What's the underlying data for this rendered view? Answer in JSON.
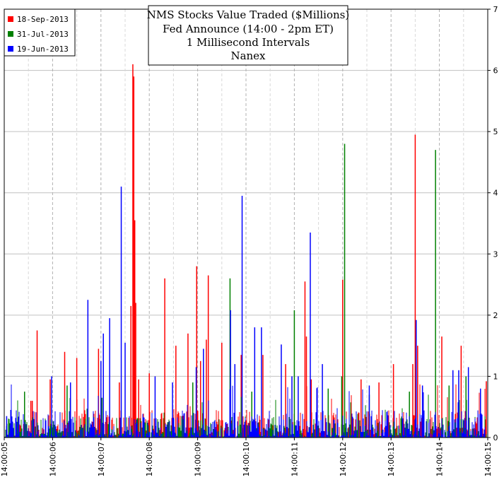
{
  "chart_data": {
    "type": "bar",
    "title_lines": [
      "NMS Stocks Value Traded ($Millions)",
      "Fed Announce (14:00 - 2pm ET)",
      "1 Millisecond Intervals",
      "Nanex"
    ],
    "xlabel": "",
    "ylabel": "",
    "ylim": [
      0,
      7
    ],
    "y_ticks": [
      "0",
      "1",
      "2",
      "3",
      "4",
      "5",
      "6",
      "7"
    ],
    "x_ticks": [
      "14:00:05",
      "14:00:06",
      "14:00:07",
      "14:00:08",
      "14:00:09",
      "14:00:10",
      "14:00:11",
      "14:00:12",
      "14:00:13",
      "14:00:14",
      "14:00:15"
    ],
    "x_range_seconds": [
      5,
      15
    ],
    "grid": true,
    "legend_position": "top-left",
    "series": [
      {
        "name": "18-Sep-2013",
        "color": "#ff0000",
        "baseline_max": 0.45,
        "spikes": [
          {
            "t": 5.55,
            "v": 0.6
          },
          {
            "t": 5.58,
            "v": 0.6
          },
          {
            "t": 5.68,
            "v": 1.75
          },
          {
            "t": 5.95,
            "v": 0.95
          },
          {
            "t": 6.25,
            "v": 1.4
          },
          {
            "t": 6.5,
            "v": 1.3
          },
          {
            "t": 6.95,
            "v": 1.45
          },
          {
            "t": 7.38,
            "v": 0.9
          },
          {
            "t": 7.62,
            "v": 2.15
          },
          {
            "t": 7.66,
            "v": 6.1
          },
          {
            "t": 7.68,
            "v": 5.9
          },
          {
            "t": 7.7,
            "v": 3.55
          },
          {
            "t": 7.72,
            "v": 2.2
          },
          {
            "t": 7.78,
            "v": 0.95
          },
          {
            "t": 8.0,
            "v": 1.05
          },
          {
            "t": 8.32,
            "v": 2.6
          },
          {
            "t": 8.55,
            "v": 1.5
          },
          {
            "t": 8.8,
            "v": 1.7
          },
          {
            "t": 8.98,
            "v": 2.8
          },
          {
            "t": 9.06,
            "v": 1.25
          },
          {
            "t": 9.18,
            "v": 1.6
          },
          {
            "t": 9.22,
            "v": 2.65
          },
          {
            "t": 9.5,
            "v": 1.55
          },
          {
            "t": 9.9,
            "v": 1.35
          },
          {
            "t": 10.35,
            "v": 1.35
          },
          {
            "t": 10.82,
            "v": 1.2
          },
          {
            "t": 11.22,
            "v": 2.55
          },
          {
            "t": 11.25,
            "v": 1.65
          },
          {
            "t": 11.35,
            "v": 0.95
          },
          {
            "t": 12.0,
            "v": 2.58
          },
          {
            "t": 12.38,
            "v": 0.95
          },
          {
            "t": 12.75,
            "v": 0.9
          },
          {
            "t": 13.05,
            "v": 1.2
          },
          {
            "t": 13.45,
            "v": 1.2
          },
          {
            "t": 13.5,
            "v": 4.95
          },
          {
            "t": 13.55,
            "v": 1.5
          },
          {
            "t": 14.05,
            "v": 1.65
          },
          {
            "t": 14.45,
            "v": 1.5
          },
          {
            "t": 14.97,
            "v": 0.92
          }
        ]
      },
      {
        "name": "31-Jul-2013",
        "color": "#008000",
        "baseline_max": 0.35,
        "spikes": [
          {
            "t": 5.42,
            "v": 0.75
          },
          {
            "t": 6.3,
            "v": 0.85
          },
          {
            "t": 7.02,
            "v": 0.65
          },
          {
            "t": 8.9,
            "v": 0.9
          },
          {
            "t": 9.67,
            "v": 2.6
          },
          {
            "t": 10.12,
            "v": 0.75
          },
          {
            "t": 11.0,
            "v": 2.08
          },
          {
            "t": 11.7,
            "v": 0.8
          },
          {
            "t": 11.98,
            "v": 1.0
          },
          {
            "t": 12.04,
            "v": 4.8
          },
          {
            "t": 12.55,
            "v": 0.7
          },
          {
            "t": 13.38,
            "v": 0.75
          },
          {
            "t": 13.92,
            "v": 4.7
          },
          {
            "t": 14.2,
            "v": 0.85
          },
          {
            "t": 14.55,
            "v": 1.0
          }
        ]
      },
      {
        "name": "19-Jun-2013",
        "color": "#0000ff",
        "baseline_max": 0.45,
        "spikes": [
          {
            "t": 5.05,
            "v": 0.35
          },
          {
            "t": 5.98,
            "v": 1.0
          },
          {
            "t": 6.37,
            "v": 0.9
          },
          {
            "t": 6.73,
            "v": 2.25
          },
          {
            "t": 7.0,
            "v": 1.25
          },
          {
            "t": 7.05,
            "v": 1.7
          },
          {
            "t": 7.18,
            "v": 1.95
          },
          {
            "t": 7.42,
            "v": 4.1
          },
          {
            "t": 7.5,
            "v": 1.55
          },
          {
            "t": 8.12,
            "v": 1.0
          },
          {
            "t": 8.48,
            "v": 0.9
          },
          {
            "t": 8.97,
            "v": 1.15
          },
          {
            "t": 9.12,
            "v": 1.45
          },
          {
            "t": 9.68,
            "v": 2.08
          },
          {
            "t": 9.77,
            "v": 1.2
          },
          {
            "t": 9.92,
            "v": 3.95
          },
          {
            "t": 10.18,
            "v": 1.8
          },
          {
            "t": 10.32,
            "v": 1.8
          },
          {
            "t": 10.73,
            "v": 1.52
          },
          {
            "t": 10.95,
            "v": 1.0
          },
          {
            "t": 11.08,
            "v": 1.0
          },
          {
            "t": 11.33,
            "v": 3.35
          },
          {
            "t": 11.58,
            "v": 1.2
          },
          {
            "t": 12.55,
            "v": 0.85
          },
          {
            "t": 13.52,
            "v": 1.92
          },
          {
            "t": 13.65,
            "v": 0.85
          },
          {
            "t": 14.28,
            "v": 1.1
          },
          {
            "t": 14.4,
            "v": 1.1
          },
          {
            "t": 14.6,
            "v": 1.15
          },
          {
            "t": 14.85,
            "v": 0.8
          }
        ]
      }
    ]
  }
}
